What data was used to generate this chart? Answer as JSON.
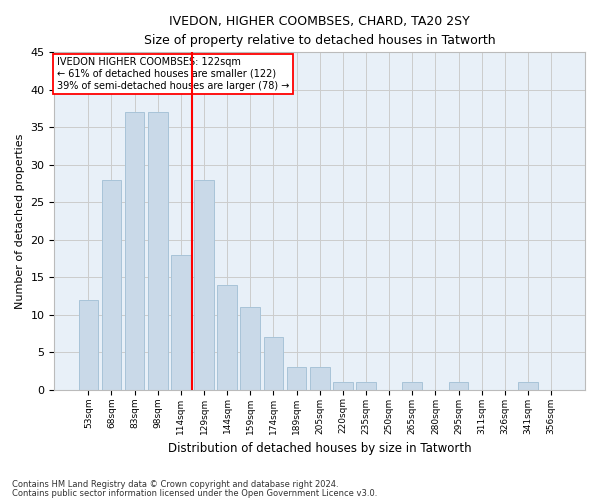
{
  "title_line1": "IVEDON, HIGHER COOMBSES, CHARD, TA20 2SY",
  "title_line2": "Size of property relative to detached houses in Tatworth",
  "xlabel": "Distribution of detached houses by size in Tatworth",
  "ylabel": "Number of detached properties",
  "footnote_line1": "Contains HM Land Registry data © Crown copyright and database right 2024.",
  "footnote_line2": "Contains public sector information licensed under the Open Government Licence v3.0.",
  "bar_labels": [
    "53sqm",
    "68sqm",
    "83sqm",
    "98sqm",
    "114sqm",
    "129sqm",
    "144sqm",
    "159sqm",
    "174sqm",
    "189sqm",
    "205sqm",
    "220sqm",
    "235sqm",
    "250sqm",
    "265sqm",
    "280sqm",
    "295sqm",
    "311sqm",
    "326sqm",
    "341sqm",
    "356sqm"
  ],
  "bar_values": [
    12,
    28,
    37,
    37,
    18,
    28,
    14,
    11,
    7,
    3,
    3,
    1,
    1,
    0,
    1,
    0,
    1,
    0,
    0,
    1,
    0
  ],
  "bar_color": "#c9d9e8",
  "bar_edge_color": "#a8c4d8",
  "grid_color": "#cccccc",
  "bg_color": "#e8f0f8",
  "red_line_x": 4.5,
  "annotation_title": "IVEDON HIGHER COOMBSES: 122sqm",
  "annotation_line1": "← 61% of detached houses are smaller (122)",
  "annotation_line2": "39% of semi-detached houses are larger (78) →",
  "ylim": [
    0,
    45
  ],
  "yticks": [
    0,
    5,
    10,
    15,
    20,
    25,
    30,
    35,
    40,
    45
  ]
}
